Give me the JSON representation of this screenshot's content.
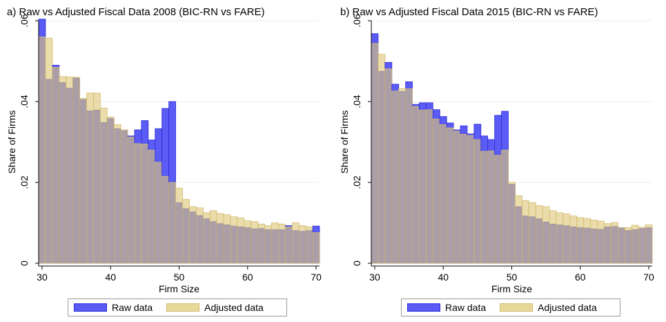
{
  "colors": {
    "raw_fill": "#5b5bf5",
    "raw_edge": "#2b2bd6",
    "adj_fill": "rgba(222,200,120,0.62)",
    "adj_edge": "#d2ba70",
    "overlap_fill": "#a99aab"
  },
  "legend": {
    "raw_label": "Raw data",
    "adj_label": "Adjusted data"
  },
  "chart_data": [
    {
      "type": "bar",
      "title": "a) Raw vs Adjusted Fiscal Data 2008 (BIC-RN vs FARE)",
      "xlabel": "Firm Size",
      "ylabel": "Share of Firms",
      "xlim": [
        29.5,
        70.5
      ],
      "ylim": [
        0,
        0.06
      ],
      "xticks": [
        30,
        40,
        50,
        60,
        70
      ],
      "yticks": [
        0,
        0.02,
        0.04,
        0.06
      ],
      "ytick_labels": [
        "0",
        ".02",
        ".04",
        ".06"
      ],
      "grid": true,
      "categories": [
        30,
        31,
        32,
        33,
        34,
        35,
        36,
        37,
        38,
        39,
        40,
        41,
        42,
        43,
        44,
        45,
        46,
        47,
        48,
        49,
        50,
        51,
        52,
        53,
        54,
        55,
        56,
        57,
        58,
        59,
        60,
        61,
        62,
        63,
        64,
        65,
        66,
        67,
        68,
        69,
        70
      ],
      "series": [
        {
          "name": "Raw data",
          "values": [
            0.0604,
            0.0455,
            0.049,
            0.0447,
            0.0433,
            0.0458,
            0.0405,
            0.0377,
            0.0379,
            0.0348,
            0.0358,
            0.0333,
            0.0328,
            0.0315,
            0.033,
            0.0353,
            0.0305,
            0.0333,
            0.0383,
            0.04,
            0.015,
            0.0135,
            0.0127,
            0.0118,
            0.011,
            0.0103,
            0.0098,
            0.0095,
            0.0092,
            0.009,
            0.0088,
            0.0085,
            0.0086,
            0.0083,
            0.0083,
            0.0083,
            0.0093,
            0.0081,
            0.0079,
            0.0081,
            0.0092
          ]
        },
        {
          "name": "Adjusted data",
          "values": [
            0.056,
            0.0557,
            0.0485,
            0.0462,
            0.0461,
            0.046,
            0.0408,
            0.0421,
            0.0421,
            0.0384,
            0.0362,
            0.0343,
            0.033,
            0.0312,
            0.0296,
            0.0295,
            0.028,
            0.025,
            0.0215,
            0.02,
            0.0186,
            0.0158,
            0.014,
            0.0137,
            0.0125,
            0.013,
            0.0123,
            0.012,
            0.0115,
            0.0112,
            0.0105,
            0.0103,
            0.0097,
            0.0093,
            0.01,
            0.0097,
            0.009,
            0.01,
            0.0093,
            0.009,
            0.0076
          ]
        }
      ]
    },
    {
      "type": "bar",
      "title": "b) Raw vs Adjusted Fiscal Data 2015 (BIC-RN vs FARE)",
      "xlabel": "Firm Size",
      "ylabel": "Share of Firms",
      "xlim": [
        29.5,
        70.5
      ],
      "ylim": [
        0,
        0.06
      ],
      "xticks": [
        30,
        40,
        50,
        60,
        70
      ],
      "yticks": [
        0,
        0.02,
        0.04,
        0.06
      ],
      "ytick_labels": [
        "0",
        ".02",
        ".04",
        ".06"
      ],
      "grid": true,
      "categories": [
        30,
        31,
        32,
        33,
        34,
        35,
        36,
        37,
        38,
        39,
        40,
        41,
        42,
        43,
        44,
        45,
        46,
        47,
        48,
        49,
        50,
        51,
        52,
        53,
        54,
        55,
        56,
        57,
        58,
        59,
        60,
        61,
        62,
        63,
        64,
        65,
        66,
        67,
        68,
        69,
        70
      ],
      "series": [
        {
          "name": "Raw data",
          "values": [
            0.0568,
            0.0475,
            0.0497,
            0.0443,
            0.0425,
            0.0449,
            0.0393,
            0.0397,
            0.0397,
            0.038,
            0.0363,
            0.0347,
            0.033,
            0.034,
            0.032,
            0.0344,
            0.0315,
            0.0306,
            0.0366,
            0.0376,
            0.0195,
            0.014,
            0.0117,
            0.0115,
            0.011,
            0.0102,
            0.0097,
            0.0095,
            0.0093,
            0.009,
            0.0088,
            0.0087,
            0.0085,
            0.0084,
            0.009,
            0.0091,
            0.0088,
            0.0081,
            0.0083,
            0.0086,
            0.0088
          ]
        },
        {
          "name": "Adjusted data",
          "values": [
            0.0544,
            0.0517,
            0.0481,
            0.0426,
            0.0432,
            0.0432,
            0.0388,
            0.0379,
            0.038,
            0.0357,
            0.0343,
            0.0335,
            0.0327,
            0.0319,
            0.0316,
            0.0306,
            0.0277,
            0.0278,
            0.0267,
            0.028,
            0.02,
            0.0167,
            0.0155,
            0.015,
            0.0143,
            0.014,
            0.013,
            0.0125,
            0.0122,
            0.0117,
            0.0113,
            0.0111,
            0.0107,
            0.0104,
            0.0098,
            0.0101,
            0.0088,
            0.0088,
            0.0094,
            0.0089,
            0.0095
          ]
        }
      ]
    }
  ]
}
